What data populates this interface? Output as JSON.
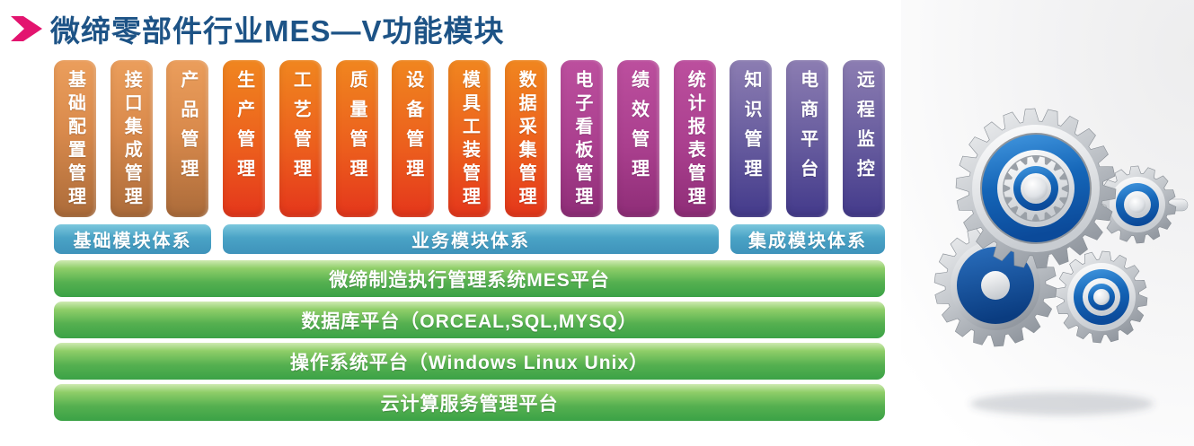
{
  "header": {
    "title": "微缔零部件行业MES—V功能模块",
    "arrow_icon": "chevron-right-icon"
  },
  "modules": [
    {
      "label": "基础配置管理",
      "group": "foundation"
    },
    {
      "label": "接口集成管理",
      "group": "foundation"
    },
    {
      "label": "产品管理",
      "group": "foundation"
    },
    {
      "label": "生产管理",
      "group": "business"
    },
    {
      "label": "工艺管理",
      "group": "business"
    },
    {
      "label": "质量管理",
      "group": "business"
    },
    {
      "label": "设备管理",
      "group": "business"
    },
    {
      "label": "模具工装管理",
      "group": "business"
    },
    {
      "label": "数据采集管理",
      "group": "business"
    },
    {
      "label": "电子看板管理",
      "group": "board"
    },
    {
      "label": "绩效管理",
      "group": "board"
    },
    {
      "label": "统计报表管理",
      "group": "board"
    },
    {
      "label": "知识管理",
      "group": "integration"
    },
    {
      "label": "电商平台",
      "group": "integration"
    },
    {
      "label": "远程监控",
      "group": "integration"
    }
  ],
  "tiers": [
    {
      "label": "基础模块体系"
    },
    {
      "label": "业务模块体系"
    },
    {
      "label": "集成模块体系"
    }
  ],
  "platforms": [
    {
      "label": "微缔制造执行管理系统MES平台"
    },
    {
      "label": "数据库平台（ORCEAL,SQL,MYSQ）"
    },
    {
      "label": "操作系统平台（Windows Linux Unix）"
    },
    {
      "label": "云计算服务管理平台"
    }
  ],
  "illustration": {
    "icon": "gears-icon"
  },
  "colors": {
    "title_blue": "#1d5386",
    "arrow_magenta": "#e3146f",
    "foundation_top": "#eb9e5c",
    "foundation_bottom": "#ab6b3a",
    "business_top": "#f0861f",
    "business_bottom": "#e4361b",
    "board_top": "#bc4f9e",
    "board_bottom": "#8e2d77",
    "integration_top": "#8c7db2",
    "integration_bottom": "#433a8b",
    "tier_teal": "#4aa3c6",
    "platform_green": "#44a546",
    "gear_blue": "#1566b8"
  }
}
